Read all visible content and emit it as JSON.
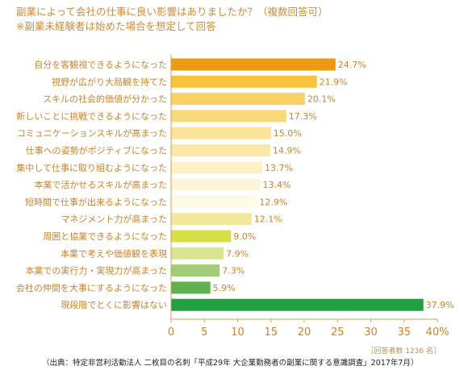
{
  "title_line1": "副業によって会社の仕事に良い影響はありましたか？（複数回答可）",
  "title_line2": "※副業未経験者は始めた場合を想定して回答",
  "respondents": "［回答者数 1236 名］",
  "source": "（出典：特定非営利活動法人 二枚目の名刺「平成29年 大企業勤務者の副業に関する意識調査」2017年7月）",
  "chart_data": {
    "type": "bar",
    "orientation": "horizontal",
    "categories": [
      "自分を客観視できるようになった",
      "視野が広がり大局観を持てた",
      "スキルの社会的価値が分かった",
      "新しいことに挑戦できるようになった",
      "コミュニケーションスキルが高まった",
      "仕事への姿勢がポジティブになった",
      "集中して仕事に取り組むようになった",
      "本業で活かせるスキルが高まった",
      "短時間で仕事が出来るようになった",
      "マネジメント力が高まった",
      "周囲と協業できるようになった",
      "本業で考えや価値観を表現",
      "本業での実行力・実現力が高まった",
      "会社の仲間を大事にするようになった",
      "現段階でとくに影響はない"
    ],
    "values": [
      24.7,
      21.9,
      20.1,
      17.3,
      15.0,
      14.9,
      13.7,
      13.4,
      12.9,
      12.1,
      9.0,
      7.9,
      7.3,
      5.9,
      37.9
    ],
    "value_labels": [
      "24.7%",
      "21.9%",
      "20.1%",
      "17.3%",
      "15.0%",
      "14.9%",
      "13.7%",
      "13.4%",
      "12.9%",
      "12.1%",
      "9.0%",
      "7.9%",
      "7.3%",
      "5.9%",
      "37.9%"
    ],
    "colors": [
      "#ee9a10",
      "#f7c43c",
      "#f8d266",
      "#f9da7a",
      "#fbe49a",
      "#fce8a6",
      "#fdf1c6",
      "#fdf5d8",
      "#fefaea",
      "#f1e89c",
      "#d8e048",
      "#d9e690",
      "#9fcd78",
      "#5fb34e",
      "#20a040"
    ],
    "xlim": [
      0,
      40
    ],
    "xticks": [
      "0",
      "5",
      "10",
      "15",
      "20",
      "25",
      "30",
      "35",
      "40%"
    ],
    "grid": false
  }
}
